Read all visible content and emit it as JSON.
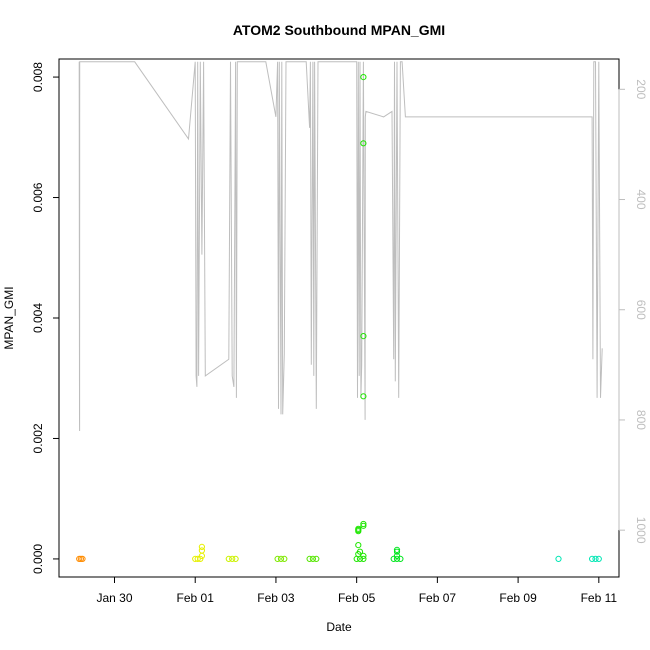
{
  "chart_data": {
    "type": "scatter",
    "title": "ATOM2 Southbound MPAN_GMI",
    "xlabel": "Date",
    "ylabel": "MPAN_GMI",
    "xlim": [
      "2017-01-28T15:00",
      "2017-02-11T12:00"
    ],
    "ylim": [
      -0.0003,
      0.0083
    ],
    "x_ticks": [
      {
        "date": "2017-01-30",
        "label": "Jan 30"
      },
      {
        "date": "2017-02-01",
        "label": "Feb 01"
      },
      {
        "date": "2017-02-03",
        "label": "Feb 03"
      },
      {
        "date": "2017-02-05",
        "label": "Feb 05"
      },
      {
        "date": "2017-02-07",
        "label": "Feb 07"
      },
      {
        "date": "2017-02-09",
        "label": "Feb 09"
      },
      {
        "date": "2017-02-11",
        "label": "Feb 11"
      }
    ],
    "y_ticks": [
      0.0,
      0.002,
      0.004,
      0.006,
      0.008
    ],
    "y_tick_labels": [
      "0.000",
      "0.002",
      "0.004",
      "0.006",
      "0.008"
    ],
    "right_axis": {
      "color": "#bebebe",
      "reversed": true,
      "ylim": [
        1085,
        145
      ],
      "ticks": [
        200,
        400,
        600,
        800,
        1000
      ],
      "tick_labels": [
        "200",
        "400",
        "600",
        "800",
        "1000"
      ]
    },
    "points": [
      {
        "x": "2017-01-29T03:00",
        "y": 0.0,
        "color": "#ff8c00"
      },
      {
        "x": "2017-01-29T04:00",
        "y": 0.0,
        "color": "#ff8c00"
      },
      {
        "x": "2017-01-29T05:00",
        "y": 0.0,
        "color": "#ff8c00"
      },
      {
        "x": "2017-02-01T00:00",
        "y": 0.0,
        "color": "#e6f000"
      },
      {
        "x": "2017-02-01T01:30",
        "y": 0.0,
        "color": "#e6f000"
      },
      {
        "x": "2017-02-01T03:00",
        "y": 0.0,
        "color": "#e6f000"
      },
      {
        "x": "2017-02-01T04:00",
        "y": 5e-05,
        "color": "#e6f000"
      },
      {
        "x": "2017-02-01T04:00",
        "y": 0.00014,
        "color": "#e6f000"
      },
      {
        "x": "2017-02-01T04:00",
        "y": 0.0002,
        "color": "#e6f000"
      },
      {
        "x": "2017-02-01T20:00",
        "y": 0.0,
        "color": "#ccf200"
      },
      {
        "x": "2017-02-01T22:00",
        "y": 0.0,
        "color": "#ccf200"
      },
      {
        "x": "2017-02-02T00:00",
        "y": 0.0,
        "color": "#ccf200"
      },
      {
        "x": "2017-02-03T01:00",
        "y": 0.0,
        "color": "#7fe800"
      },
      {
        "x": "2017-02-03T03:00",
        "y": 0.0,
        "color": "#7fe800"
      },
      {
        "x": "2017-02-03T05:00",
        "y": 0.0,
        "color": "#7fe800"
      },
      {
        "x": "2017-02-03T20:00",
        "y": 0.0,
        "color": "#55e600"
      },
      {
        "x": "2017-02-03T22:00",
        "y": 0.0,
        "color": "#55e600"
      },
      {
        "x": "2017-02-04T00:00",
        "y": 0.0,
        "color": "#55e600"
      },
      {
        "x": "2017-02-05T00:00",
        "y": 0.0,
        "color": "#1ee600"
      },
      {
        "x": "2017-02-05T02:00",
        "y": 0.0,
        "color": "#1ee600"
      },
      {
        "x": "2017-02-05T04:00",
        "y": 0.0,
        "color": "#1ee600"
      },
      {
        "x": "2017-02-05T01:00",
        "y": 8e-05,
        "color": "#1ee600"
      },
      {
        "x": "2017-02-05T02:00",
        "y": 0.00012,
        "color": "#1ee600"
      },
      {
        "x": "2017-02-05T01:00",
        "y": 0.00023,
        "color": "#1ee600"
      },
      {
        "x": "2017-02-05T01:00",
        "y": 0.00046,
        "color": "#1ee600"
      },
      {
        "x": "2017-02-05T01:00",
        "y": 0.00048,
        "color": "#1ee600"
      },
      {
        "x": "2017-02-05T01:00",
        "y": 0.0005,
        "color": "#1ee600"
      },
      {
        "x": "2017-02-05T04:00",
        "y": 0.00055,
        "color": "#1ee600"
      },
      {
        "x": "2017-02-05T04:00",
        "y": 0.00058,
        "color": "#1ee600"
      },
      {
        "x": "2017-02-05T04:00",
        "y": 5e-05,
        "color": "#1ee600"
      },
      {
        "x": "2017-02-05T04:00",
        "y": 0.0027,
        "color": "#1ee600"
      },
      {
        "x": "2017-02-05T04:00",
        "y": 0.0037,
        "color": "#1ee600"
      },
      {
        "x": "2017-02-05T04:00",
        "y": 0.0069,
        "color": "#1ee600"
      },
      {
        "x": "2017-02-05T04:00",
        "y": 0.008,
        "color": "#1ee600"
      },
      {
        "x": "2017-02-05T22:00",
        "y": 0.0,
        "color": "#00e61e"
      },
      {
        "x": "2017-02-06T00:00",
        "y": 0.0,
        "color": "#00e61e"
      },
      {
        "x": "2017-02-06T02:00",
        "y": 0.0,
        "color": "#00e61e"
      },
      {
        "x": "2017-02-06T00:00",
        "y": 5e-05,
        "color": "#00e61e"
      },
      {
        "x": "2017-02-06T00:00",
        "y": 0.00012,
        "color": "#00e61e"
      },
      {
        "x": "2017-02-06T00:00",
        "y": 0.00015,
        "color": "#00e61e"
      },
      {
        "x": "2017-02-10T00:00",
        "y": 0.0,
        "color": "#00e6b4"
      },
      {
        "x": "2017-02-10T20:00",
        "y": 0.0,
        "color": "#00e6b4"
      },
      {
        "x": "2017-02-10T22:00",
        "y": 0.0,
        "color": "#00e6b4"
      },
      {
        "x": "2017-02-11T00:00",
        "y": 0.0,
        "color": "#00e6b4"
      }
    ],
    "altitude_track": {
      "color": "#bebebe",
      "points": [
        [
          "2017-01-29T03:00",
          150
        ],
        [
          "2017-01-29T03:10",
          800
        ],
        [
          "2017-01-29T03:15",
          820
        ],
        [
          "2017-01-29T03:20",
          150
        ],
        [
          "2017-01-29T15:00",
          150
        ],
        [
          "2017-01-30T12:00",
          150
        ],
        [
          "2017-01-31T20:00",
          290
        ],
        [
          "2017-02-01T00:00",
          150
        ],
        [
          "2017-02-01T00:30",
          720
        ],
        [
          "2017-02-01T01:00",
          740
        ],
        [
          "2017-02-01T01:30",
          150
        ],
        [
          "2017-02-01T02:00",
          720
        ],
        [
          "2017-02-01T03:00",
          150
        ],
        [
          "2017-02-01T04:00",
          500
        ],
        [
          "2017-02-01T05:00",
          150
        ],
        [
          "2017-02-01T06:00",
          720
        ],
        [
          "2017-02-01T20:00",
          690
        ],
        [
          "2017-02-01T21:00",
          150
        ],
        [
          "2017-02-01T22:00",
          720
        ],
        [
          "2017-02-01T23:00",
          740
        ],
        [
          "2017-02-02T00:00",
          150
        ],
        [
          "2017-02-02T00:30",
          760
        ],
        [
          "2017-02-02T01:00",
          150
        ],
        [
          "2017-02-02T18:00",
          150
        ],
        [
          "2017-02-03T00:00",
          250
        ],
        [
          "2017-02-03T01:00",
          150
        ],
        [
          "2017-02-03T01:30",
          780
        ],
        [
          "2017-02-03T02:00",
          150
        ],
        [
          "2017-02-03T03:00",
          790
        ],
        [
          "2017-02-03T03:30",
          150
        ],
        [
          "2017-02-03T04:00",
          790
        ],
        [
          "2017-02-03T05:00",
          680
        ],
        [
          "2017-02-03T06:00",
          150
        ],
        [
          "2017-02-03T18:00",
          150
        ],
        [
          "2017-02-03T20:00",
          270
        ],
        [
          "2017-02-03T20:30",
          150
        ],
        [
          "2017-02-03T21:00",
          700
        ],
        [
          "2017-02-03T22:00",
          150
        ],
        [
          "2017-02-03T22:30",
          720
        ],
        [
          "2017-02-03T23:00",
          150
        ],
        [
          "2017-02-04T00:00",
          780
        ],
        [
          "2017-02-04T01:00",
          150
        ],
        [
          "2017-02-05T00:00",
          150
        ],
        [
          "2017-02-05T00:30",
          760
        ],
        [
          "2017-02-05T01:00",
          150
        ],
        [
          "2017-02-05T01:30",
          720
        ],
        [
          "2017-02-05T02:00",
          150
        ],
        [
          "2017-02-05T02:30",
          760
        ],
        [
          "2017-02-05T03:00",
          700
        ],
        [
          "2017-02-05T04:00",
          150
        ],
        [
          "2017-02-05T05:00",
          800
        ],
        [
          "2017-02-05T05:10",
          250
        ],
        [
          "2017-02-05T05:30",
          240
        ],
        [
          "2017-02-05T16:00",
          250
        ],
        [
          "2017-02-05T21:00",
          240
        ],
        [
          "2017-02-05T22:00",
          690
        ],
        [
          "2017-02-05T22:30",
          150
        ],
        [
          "2017-02-05T23:00",
          730
        ],
        [
          "2017-02-06T00:00",
          150
        ],
        [
          "2017-02-06T01:00",
          760
        ],
        [
          "2017-02-06T02:00",
          150
        ],
        [
          "2017-02-06T03:00",
          150
        ],
        [
          "2017-02-06T05:00",
          250
        ],
        [
          "2017-02-06T06:00",
          250
        ],
        [
          "2017-02-10T20:00",
          250
        ],
        [
          "2017-02-10T20:30",
          690
        ],
        [
          "2017-02-10T21:00",
          150
        ],
        [
          "2017-02-10T22:00",
          150
        ],
        [
          "2017-02-10T23:00",
          760
        ],
        [
          "2017-02-11T00:00",
          150
        ],
        [
          "2017-02-11T01:00",
          760
        ],
        [
          "2017-02-11T02:00",
          670
        ]
      ]
    }
  }
}
